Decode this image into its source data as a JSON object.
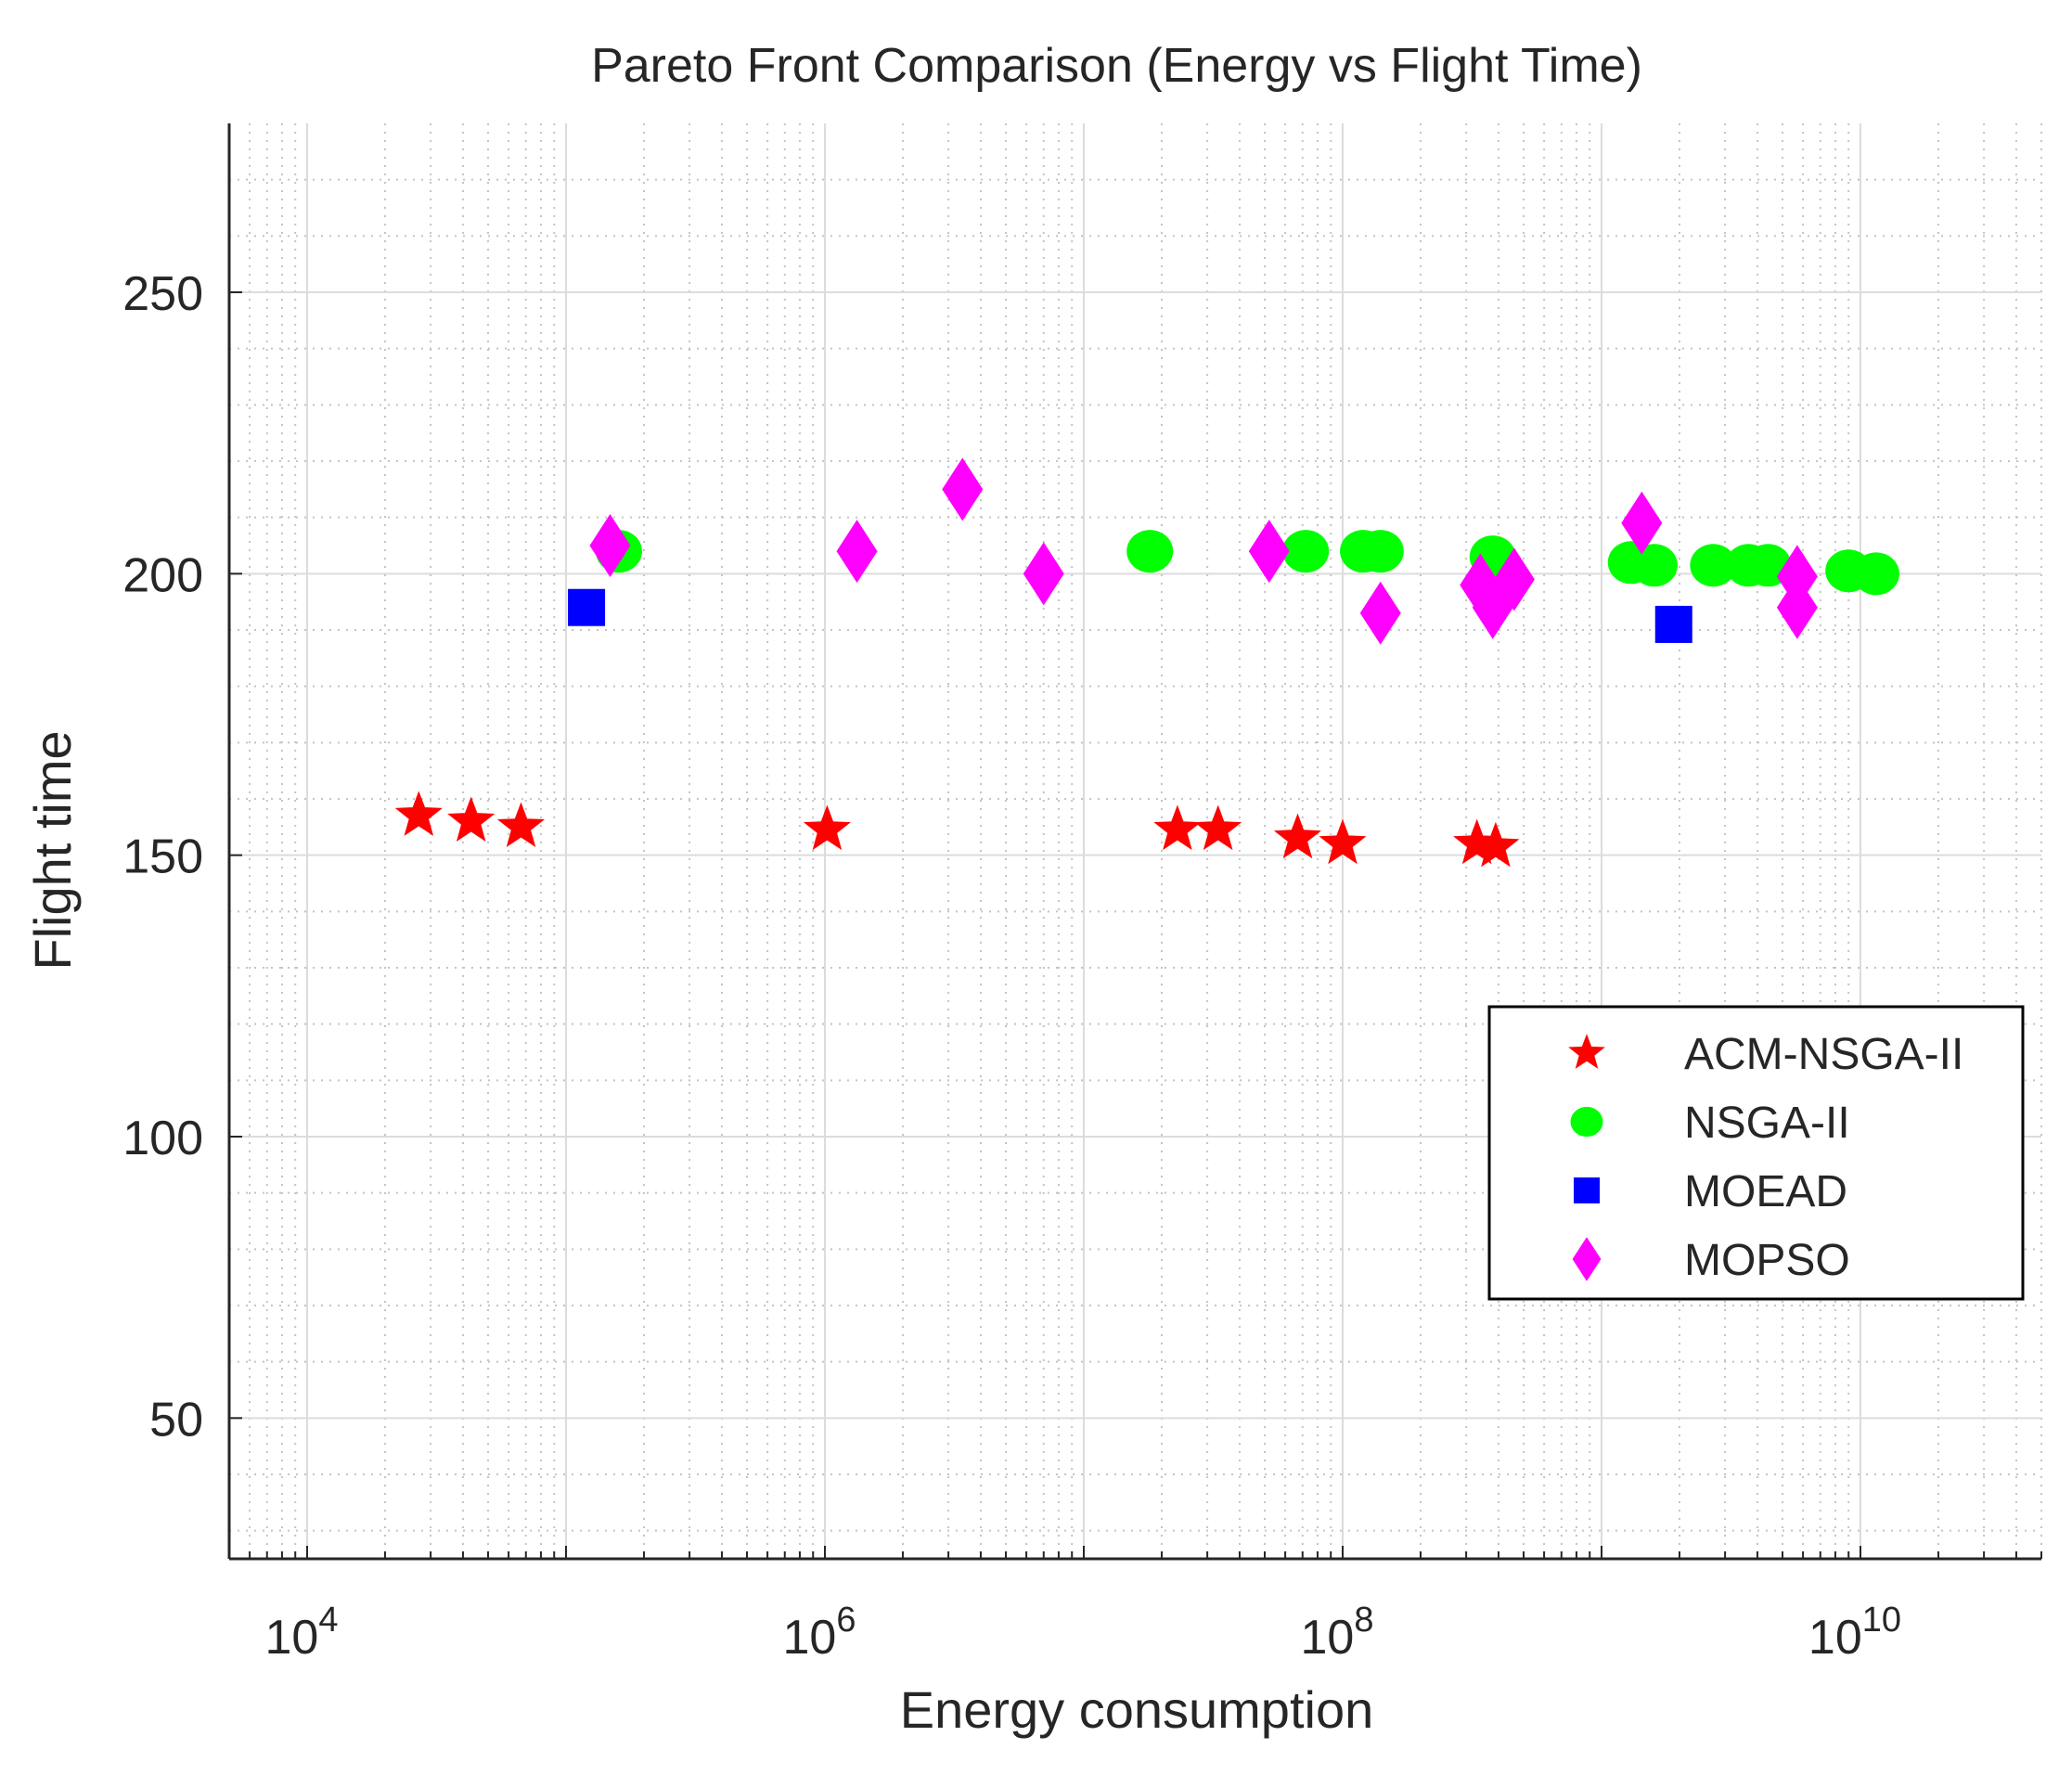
{
  "chart_data": {
    "type": "scatter",
    "title": "Pareto Front Comparison (Energy vs Flight Time)",
    "xlabel": "Energy consumption",
    "ylabel": "Flight time",
    "xscale": "log",
    "xlim": [
      5000,
      50000000000
    ],
    "ylim": [
      25,
      280
    ],
    "x_ticks": [
      {
        "value": 10000,
        "base": "10",
        "exp": "4"
      },
      {
        "value": 1000000,
        "base": "10",
        "exp": "6"
      },
      {
        "value": 100000000,
        "base": "10",
        "exp": "8"
      },
      {
        "value": 10000000000,
        "base": "10",
        "exp": "10"
      }
    ],
    "y_ticks": [
      {
        "value": 50,
        "label": "50"
      },
      {
        "value": 100,
        "label": "100"
      },
      {
        "value": 150,
        "label": "150"
      },
      {
        "value": 200,
        "label": "200"
      },
      {
        "value": 250,
        "label": "250"
      }
    ],
    "grid": true,
    "minor_grid": true,
    "legend_position": "right, lower-middle",
    "series": [
      {
        "name": "ACM-NSGA-II",
        "marker": "star",
        "color": "#ff0000",
        "x": [
          27000,
          43000,
          67000,
          1020000,
          23000000,
          33000000,
          67000000,
          100000000,
          330000000,
          390000000
        ],
        "y": [
          157,
          156,
          155,
          154.5,
          154.5,
          154.5,
          153,
          152,
          152,
          151.5
        ]
      },
      {
        "name": "NSGA-II",
        "marker": "circle",
        "color": "#00ff00",
        "x": [
          160000,
          18000000,
          72000000,
          120000000,
          140000000,
          380000000,
          1300000000,
          1600000000,
          2700000000,
          3700000000,
          4400000000,
          9000000000,
          11500000000
        ],
        "y": [
          204,
          204,
          204,
          204,
          204,
          203,
          202,
          201.5,
          201.5,
          201.5,
          201.5,
          200.5,
          200
        ],
        "sizes": [
          1,
          1,
          1,
          1,
          1,
          1,
          1,
          1,
          1,
          1,
          1,
          1,
          1
        ]
      },
      {
        "name": "MOEAD",
        "marker": "square",
        "color": "#0000ff",
        "x": [
          120000,
          1900000000
        ],
        "y": [
          194,
          191
        ]
      },
      {
        "name": "MOPSO",
        "marker": "diamond",
        "color": "#ff00ff",
        "x": [
          148000,
          1330000,
          3400000,
          7000000,
          52000000,
          140000000,
          340000000,
          380000000,
          460000000,
          1430000000,
          5700000000,
          5700000000
        ],
        "y": [
          205,
          204,
          215,
          200,
          204,
          193,
          198,
          194,
          199,
          209,
          199.5,
          194
        ]
      }
    ]
  }
}
